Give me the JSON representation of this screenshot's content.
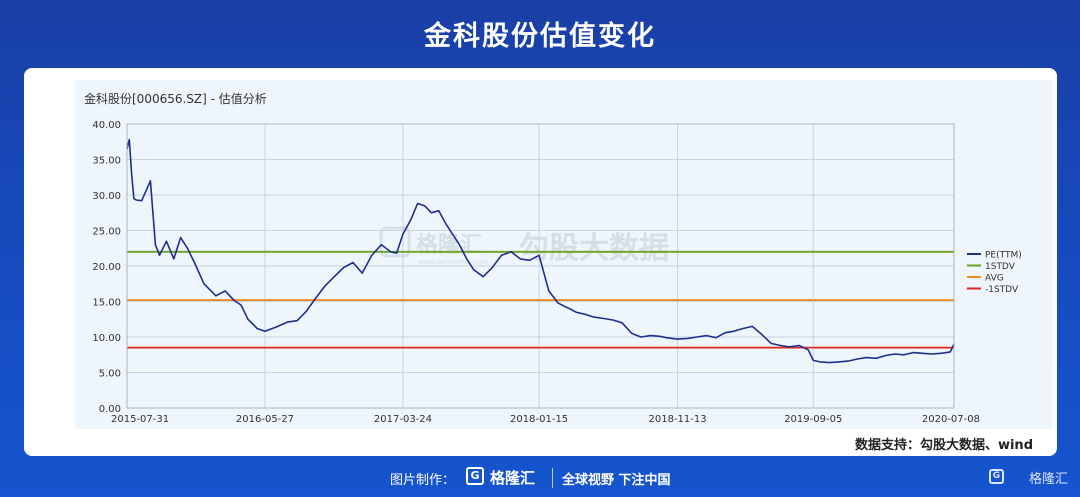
{
  "header": {
    "title": "金科股份估值变化"
  },
  "note": {
    "source": "数据支持：勾股大数据、wind"
  },
  "watermark": {
    "brand": "格隆汇",
    "url": "www.gelonghui.com",
    "text": "勾股大数据"
  },
  "footer": {
    "made_by": "图片制作：",
    "logo_letter": "G",
    "brand": "格隆汇",
    "slogan": "全球视野 下注中国",
    "corner_brand": "格隆汇"
  },
  "colors": {
    "pe": "#1f2f8f",
    "plus_std": "#6aa121",
    "avg": "#f08a24",
    "minus_std": "#e0281e",
    "grid": "#c8d4de"
  },
  "chart_data": {
    "type": "line",
    "title": "金科股份[000656.SZ] - 估值分析",
    "xlabel": "",
    "ylabel": "",
    "ylim": [
      0,
      40
    ],
    "yticks": [
      "0.00",
      "5.00",
      "10.00",
      "15.00",
      "20.00",
      "25.00",
      "30.00",
      "35.00",
      "40.00"
    ],
    "xticks": [
      "2015-07-31",
      "2016-05-27",
      "2017-03-24",
      "2018-01-15",
      "2018-11-13",
      "2019-09-05",
      "2020-07-08"
    ],
    "x_range": [
      "2015-07-31",
      "2020-07-08"
    ],
    "grid": true,
    "legend_position": "right",
    "series": [
      {
        "name": "PE(TTM)",
        "x": [
          "2015-07-31",
          "2015-08-05",
          "2015-08-10",
          "2015-08-15",
          "2015-08-20",
          "2015-09-01",
          "2015-09-20",
          "2015-10-01",
          "2015-10-10",
          "2015-10-25",
          "2015-11-10",
          "2015-11-25",
          "2015-12-10",
          "2015-12-25",
          "2016-01-15",
          "2016-02-10",
          "2016-03-01",
          "2016-03-20",
          "2016-04-05",
          "2016-04-20",
          "2016-05-10",
          "2016-05-27",
          "2016-06-20",
          "2016-07-15",
          "2016-08-05",
          "2016-08-25",
          "2016-09-15",
          "2016-10-05",
          "2016-10-25",
          "2016-11-15",
          "2016-12-05",
          "2016-12-25",
          "2017-01-15",
          "2017-02-05",
          "2017-02-25",
          "2017-03-10",
          "2017-03-24",
          "2017-04-10",
          "2017-04-25",
          "2017-05-10",
          "2017-05-25",
          "2017-06-10",
          "2017-06-25",
          "2017-07-10",
          "2017-07-25",
          "2017-08-10",
          "2017-08-25",
          "2017-09-15",
          "2017-10-05",
          "2017-10-25",
          "2017-11-15",
          "2017-12-05",
          "2017-12-25",
          "2018-01-15",
          "2018-02-05",
          "2018-02-25",
          "2018-03-15",
          "2018-03-22",
          "2018-04-05",
          "2018-04-25",
          "2018-05-15",
          "2018-06-05",
          "2018-06-25",
          "2018-07-15",
          "2018-08-05",
          "2018-08-25",
          "2018-09-15",
          "2018-10-05",
          "2018-10-20",
          "2018-11-01",
          "2018-11-13",
          "2018-12-05",
          "2018-12-25",
          "2019-01-15",
          "2019-02-05",
          "2019-02-25",
          "2019-03-15",
          "2019-04-05",
          "2019-04-25",
          "2019-05-15",
          "2019-06-05",
          "2019-06-25",
          "2019-07-15",
          "2019-08-05",
          "2019-08-25",
          "2019-09-05",
          "2019-09-20",
          "2019-10-10",
          "2019-10-30",
          "2019-11-20",
          "2019-12-10",
          "2019-12-30",
          "2020-01-20",
          "2020-02-10",
          "2020-03-01",
          "2020-03-20",
          "2020-04-10",
          "2020-04-30",
          "2020-05-20",
          "2020-06-10",
          "2020-06-30",
          "2020-07-08"
        ],
        "values": [
          36.5,
          37.8,
          33.0,
          29.5,
          29.3,
          29.2,
          32.0,
          23.0,
          21.5,
          23.5,
          21.0,
          24.0,
          22.5,
          20.5,
          17.5,
          15.8,
          16.5,
          15.2,
          14.5,
          12.5,
          11.2,
          10.8,
          11.4,
          12.1,
          12.3,
          13.6,
          15.5,
          17.2,
          18.5,
          19.8,
          20.5,
          19.0,
          21.5,
          23.0,
          22.0,
          21.8,
          24.5,
          26.5,
          28.8,
          28.5,
          27.5,
          27.8,
          26.0,
          24.5,
          23.0,
          21.0,
          19.5,
          18.5,
          19.8,
          21.5,
          22.0,
          21.0,
          20.8,
          21.5,
          16.5,
          14.8,
          14.2,
          14.0,
          13.5,
          13.2,
          12.8,
          12.6,
          12.4,
          12.0,
          10.5,
          10.0,
          10.2,
          10.1,
          9.9,
          9.8,
          9.7,
          9.8,
          10.0,
          10.2,
          9.9,
          10.6,
          10.8,
          11.2,
          11.5,
          10.4,
          9.1,
          8.8,
          8.6,
          8.8,
          8.2,
          6.7,
          6.5,
          6.4,
          6.5,
          6.6,
          6.9,
          7.1,
          7.0,
          7.4,
          7.6,
          7.5,
          7.8,
          7.7,
          7.6,
          7.7,
          7.9,
          9.0
        ]
      },
      {
        "name": "1STDV",
        "constant": 22.0
      },
      {
        "name": "AVG",
        "constant": 15.2
      },
      {
        "name": "-1STDV",
        "constant": 8.5
      }
    ]
  }
}
